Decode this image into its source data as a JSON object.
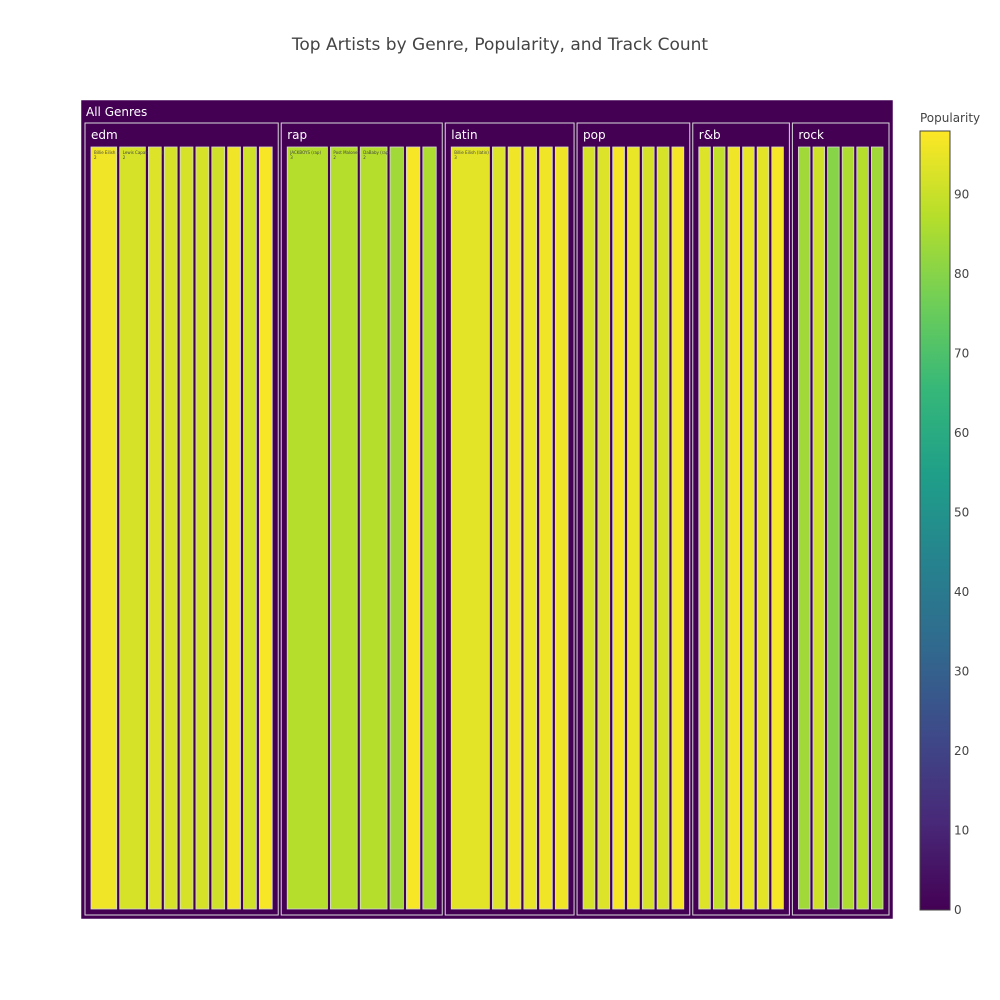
{
  "chart_data": {
    "type": "treemap",
    "title": "Top Artists by Genre, Popularity, and Track Count",
    "root_label": "All Genres",
    "colorbar": {
      "title": "Popularity",
      "range": [
        0,
        98
      ],
      "ticks": [
        "0",
        "10",
        "20",
        "30",
        "40",
        "50",
        "60",
        "70",
        "80",
        "90"
      ],
      "colorscale": [
        "#440154",
        "#482878",
        "#3e4989",
        "#31688e",
        "#26828e",
        "#1f9e89",
        "#35b779",
        "#6ece58",
        "#b5de2b",
        "#fde725"
      ]
    },
    "genres": [
      {
        "name": "edm",
        "artists": [
          {
            "label": "Billie Eilish (edm)",
            "tracks": 2,
            "popularity": 96
          },
          {
            "label": "Lewis Capaldi (edm)",
            "tracks": 2,
            "popularity": 92
          },
          {
            "label": "",
            "tracks": 1,
            "popularity": 93
          },
          {
            "label": "",
            "tracks": 1,
            "popularity": 92
          },
          {
            "label": "",
            "tracks": 1,
            "popularity": 92
          },
          {
            "label": "",
            "tracks": 1,
            "popularity": 92
          },
          {
            "label": "",
            "tracks": 1,
            "popularity": 91
          },
          {
            "label": "",
            "tracks": 1,
            "popularity": 96
          },
          {
            "label": "",
            "tracks": 1,
            "popularity": 91
          },
          {
            "label": "",
            "tracks": 1,
            "popularity": 97
          }
        ]
      },
      {
        "name": "rap",
        "artists": [
          {
            "label": "JACKBOYS (rap)",
            "tracks": 3,
            "popularity": 87
          },
          {
            "label": "Post Malone (rap)",
            "tracks": 2,
            "popularity": 87
          },
          {
            "label": "DaBaby (rap)",
            "tracks": 2,
            "popularity": 87
          },
          {
            "label": "",
            "tracks": 1,
            "popularity": 84
          },
          {
            "label": "",
            "tracks": 1,
            "popularity": 97
          },
          {
            "label": "",
            "tracks": 1,
            "popularity": 86
          }
        ]
      },
      {
        "name": "latin",
        "artists": [
          {
            "label": "Billie Eilish (latin)",
            "tracks": 3,
            "popularity": 94
          },
          {
            "label": "",
            "tracks": 1,
            "popularity": 93
          },
          {
            "label": "",
            "tracks": 1,
            "popularity": 96
          },
          {
            "label": "",
            "tracks": 1,
            "popularity": 95
          },
          {
            "label": "",
            "tracks": 1,
            "popularity": 96
          },
          {
            "label": "",
            "tracks": 1,
            "popularity": 96
          }
        ]
      },
      {
        "name": "pop",
        "artists": [
          {
            "label": "",
            "tracks": 1,
            "popularity": 92
          },
          {
            "label": "",
            "tracks": 1,
            "popularity": 93
          },
          {
            "label": "",
            "tracks": 1,
            "popularity": 97
          },
          {
            "label": "",
            "tracks": 1,
            "popularity": 95
          },
          {
            "label": "",
            "tracks": 1,
            "popularity": 92
          },
          {
            "label": "",
            "tracks": 1,
            "popularity": 92
          },
          {
            "label": "",
            "tracks": 1,
            "popularity": 97
          }
        ]
      },
      {
        "name": "r&b",
        "artists": [
          {
            "label": "",
            "tracks": 1,
            "popularity": 93
          },
          {
            "label": "",
            "tracks": 1,
            "popularity": 89
          },
          {
            "label": "",
            "tracks": 1,
            "popularity": 96
          },
          {
            "label": "",
            "tracks": 1,
            "popularity": 95
          },
          {
            "label": "",
            "tracks": 1,
            "popularity": 94
          },
          {
            "label": "",
            "tracks": 1,
            "popularity": 97
          }
        ]
      },
      {
        "name": "rock",
        "artists": [
          {
            "label": "",
            "tracks": 1,
            "popularity": 84
          },
          {
            "label": "",
            "tracks": 1,
            "popularity": 91
          },
          {
            "label": "",
            "tracks": 1,
            "popularity": 80
          },
          {
            "label": "",
            "tracks": 1,
            "popularity": 86
          },
          {
            "label": "",
            "tracks": 1,
            "popularity": 87
          },
          {
            "label": "",
            "tracks": 1,
            "popularity": 84
          }
        ]
      }
    ]
  }
}
